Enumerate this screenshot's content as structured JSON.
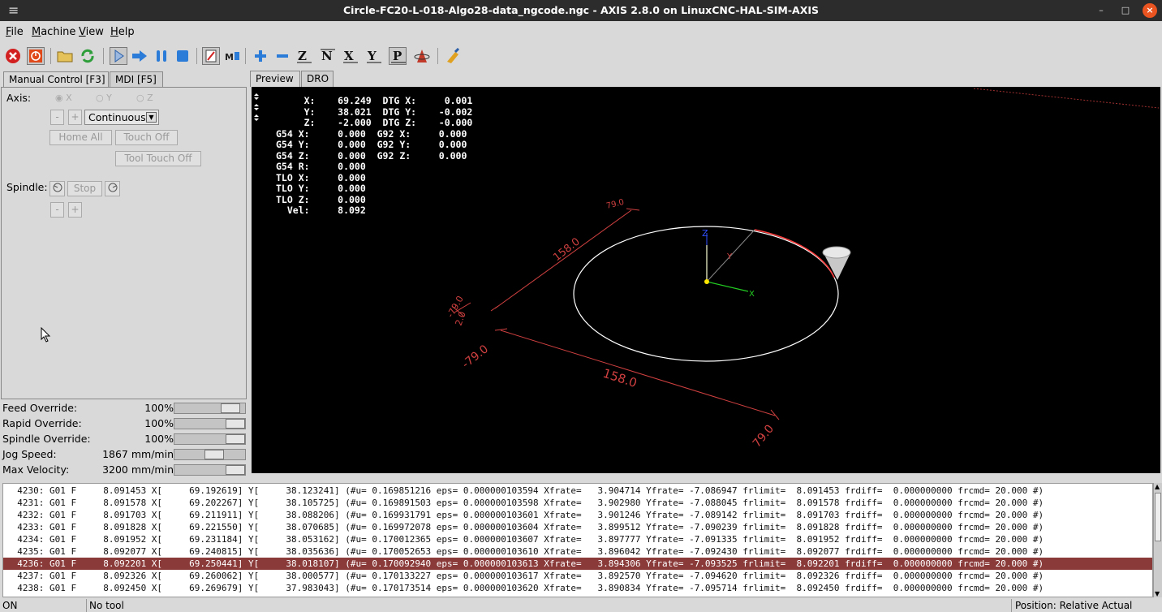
{
  "window": {
    "title": "Circle-FC20-L-018-Algo28-data_ngcode.ngc - AXIS 2.8.0 on LinuxCNC-HAL-SIM-AXIS",
    "menu_glyph": "≡",
    "minimize": "–",
    "maximize": "□",
    "close": "×"
  },
  "menubar": [
    "File",
    "Machine",
    "View",
    "Help"
  ],
  "left_tabs": [
    "Manual Control [F3]",
    "MDI [F5]"
  ],
  "manual": {
    "axis_label": "Axis:",
    "axes": [
      "X",
      "Y",
      "Z"
    ],
    "minus": "-",
    "plus": "+",
    "jog_mode": "Continuous",
    "home_all": "Home All",
    "touch_off": "Touch Off",
    "tool_touch_off": "Tool Touch Off",
    "spindle_label": "Spindle:",
    "stop": "Stop"
  },
  "overrides": [
    {
      "name": "Feed Override:",
      "value": "100%",
      "level": 0.9
    },
    {
      "name": "Rapid Override:",
      "value": "100%",
      "level": 1.0
    },
    {
      "name": "Spindle Override:",
      "value": "100%",
      "level": 1.0
    },
    {
      "name": "Jog Speed:",
      "value": "1867 mm/min",
      "level": 0.58
    },
    {
      "name": "Max Velocity:",
      "value": "3200 mm/min",
      "level": 1.0
    }
  ],
  "right_tabs": [
    "Preview",
    "DRO"
  ],
  "dro": [
    "     X:    69.249  DTG X:     0.001",
    "     Y:    38.021  DTG Y:    -0.002",
    "     Z:    -2.000  DTG Z:    -0.000",
    "G54 X:     0.000  G92 X:     0.000",
    "G54 Y:     0.000  G92 Y:     0.000",
    "G54 Z:     0.000  G92 Z:     0.000",
    "G54 R:     0.000",
    "TLO X:     0.000",
    "TLO Y:     0.000",
    "TLO Z:     0.000",
    "  Vel:     8.092"
  ],
  "preview": {
    "dim_x_top": "158.0",
    "dim_y_top": "79.0",
    "dim_z": "-79.0",
    "dim_z2": "2.0",
    "dim_x_bottom": "158.0",
    "dim_x_left": "-79.0",
    "dim_x_right": "79.0",
    "axis_x": "X",
    "axis_y": "Y",
    "axis_z": "Z",
    "path_color": "#ffffff",
    "cut_color": "#ff4040",
    "dim_color": "#d04040"
  },
  "code_lines": [
    "  4230: G01 F     8.091453 X[     69.192619] Y[     38.123241] (#u= 0.169851216 eps= 0.000000103594 Xfrate=   3.904714 Yfrate= -7.086947 frlimit=  8.091453 frdiff=  0.000000000 frcmd= 20.000 #)",
    "  4231: G01 F     8.091578 X[     69.202267] Y[     38.105725] (#u= 0.169891503 eps= 0.000000103598 Xfrate=   3.902980 Yfrate= -7.088045 frlimit=  8.091578 frdiff=  0.000000000 frcmd= 20.000 #)",
    "  4232: G01 F     8.091703 X[     69.211911] Y[     38.088206] (#u= 0.169931791 eps= 0.000000103601 Xfrate=   3.901246 Yfrate= -7.089142 frlimit=  8.091703 frdiff=  0.000000000 frcmd= 20.000 #)",
    "  4233: G01 F     8.091828 X[     69.221550] Y[     38.070685] (#u= 0.169972078 eps= 0.000000103604 Xfrate=   3.899512 Yfrate= -7.090239 frlimit=  8.091828 frdiff=  0.000000000 frcmd= 20.000 #)",
    "  4234: G01 F     8.091952 X[     69.231184] Y[     38.053162] (#u= 0.170012365 eps= 0.000000103607 Xfrate=   3.897777 Yfrate= -7.091335 frlimit=  8.091952 frdiff=  0.000000000 frcmd= 20.000 #)",
    "  4235: G01 F     8.092077 X[     69.240815] Y[     38.035636] (#u= 0.170052653 eps= 0.000000103610 Xfrate=   3.896042 Yfrate= -7.092430 frlimit=  8.092077 frdiff=  0.000000000 frcmd= 20.000 #)",
    "  4236: G01 F     8.092201 X[     69.250441] Y[     38.018107] (#u= 0.170092940 eps= 0.000000103613 Xfrate=   3.894306 Yfrate= -7.093525 frlimit=  8.092201 frdiff=  0.000000000 frcmd= 20.000 #)",
    "  4237: G01 F     8.092326 X[     69.260062] Y[     38.000577] (#u= 0.170133227 eps= 0.000000103617 Xfrate=   3.892570 Yfrate= -7.094620 frlimit=  8.092326 frdiff=  0.000000000 frcmd= 20.000 #)",
    "  4238: G01 F     8.092450 X[     69.269679] Y[     37.983043] (#u= 0.170173514 eps= 0.000000103620 Xfrate=   3.890834 Yfrate= -7.095714 frlimit=  8.092450 frdiff=  0.000000000 frcmd= 20.000 #)"
  ],
  "highlight_index": 6,
  "status": {
    "machine": "ON",
    "tool": "No tool",
    "position": "Position: Relative Actual"
  }
}
